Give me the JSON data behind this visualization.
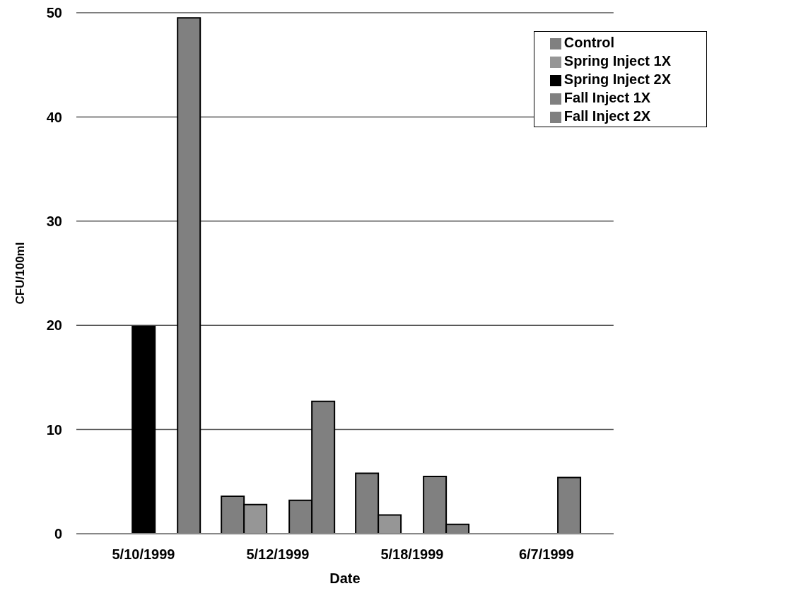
{
  "chart_data": {
    "type": "bar",
    "xlabel": "Date",
    "ylabel": "CFU/100ml",
    "categories": [
      "5/10/1999",
      "5/12/1999",
      "5/18/1999",
      "6/7/1999"
    ],
    "series": [
      {
        "name": "Control",
        "color": "#808080",
        "values": [
          null,
          3.6,
          5.8,
          null
        ]
      },
      {
        "name": "Spring Inject 1X",
        "color": "#969696",
        "values": [
          null,
          2.8,
          1.8,
          null
        ]
      },
      {
        "name": "Spring Inject 2X",
        "color": "#000000",
        "values": [
          19.9,
          null,
          null,
          null
        ]
      },
      {
        "name": "Fall Inject 1X",
        "color": "#808080",
        "values": [
          null,
          3.2,
          5.5,
          5.4
        ]
      },
      {
        "name": "Fall Inject 2X",
        "color": "#808080",
        "values": [
          49.5,
          12.7,
          0.9,
          null
        ]
      }
    ],
    "ylim": [
      0,
      50
    ],
    "yticks": [
      0,
      10,
      20,
      30,
      40,
      50
    ],
    "grid": "y",
    "legend": "top right"
  }
}
